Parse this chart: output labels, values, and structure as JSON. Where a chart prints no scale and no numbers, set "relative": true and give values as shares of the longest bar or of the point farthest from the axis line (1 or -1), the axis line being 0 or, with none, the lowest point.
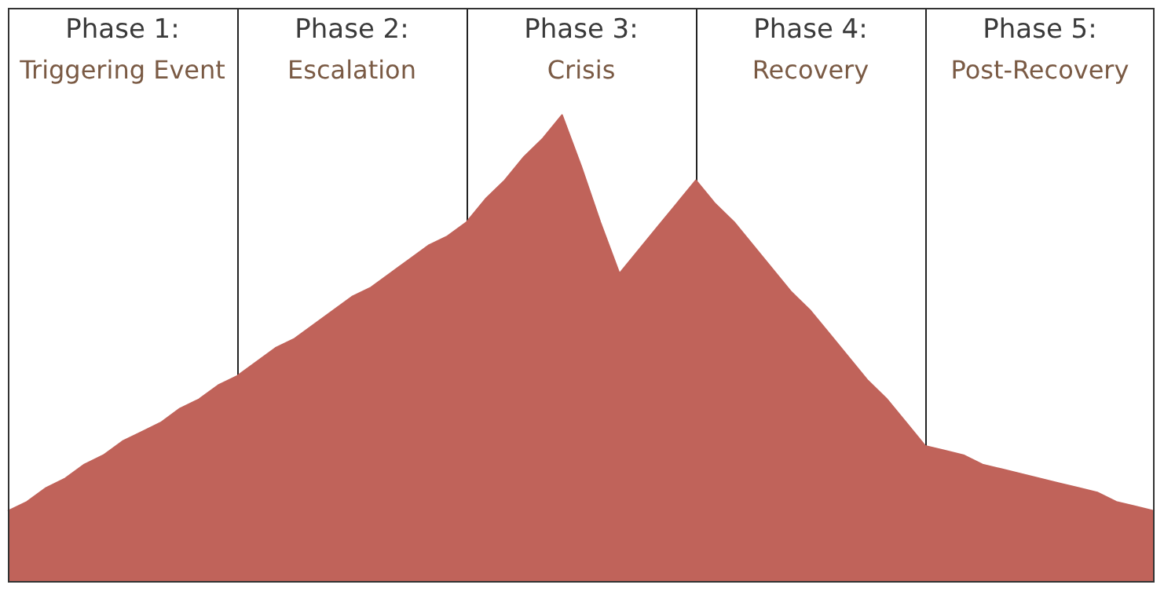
{
  "chart_data": {
    "type": "area",
    "relative": true,
    "tick_labels": false,
    "legend": false,
    "annotations": [
      "Phase 1:\nTriggering Event",
      "Phase 2:\nEscalation",
      "Phase 3:\nCrisis",
      "Phase 4:\nRecovery",
      "Phase 5:\nPost-Recovery"
    ],
    "categories": [
      null,
      null,
      null,
      null,
      null,
      null,
      null,
      null,
      null,
      null,
      null,
      null,
      null,
      null,
      null,
      null,
      null,
      null,
      null,
      null,
      null,
      null,
      null,
      null,
      null,
      null,
      null,
      null,
      null,
      null,
      null,
      null,
      null,
      null,
      null,
      null,
      null,
      null,
      null,
      null,
      null,
      null,
      null,
      null,
      null,
      null,
      null,
      null,
      null,
      null,
      null,
      null,
      null,
      null,
      null,
      null,
      null,
      null,
      null,
      null,
      null
    ],
    "series": [
      {
        "color": "#c0635a",
        "values": [
          0.15,
          0.17,
          0.2,
          0.22,
          0.25,
          0.27,
          0.3,
          0.32,
          0.34,
          0.37,
          0.39,
          0.42,
          0.44,
          0.47,
          0.5,
          0.52,
          0.55,
          0.58,
          0.61,
          0.63,
          0.66,
          0.69,
          0.72,
          0.74,
          0.77,
          0.82,
          0.86,
          0.91,
          0.95,
          1,
          0.89,
          0.77,
          0.66,
          0.71,
          0.76,
          0.81,
          0.86,
          0.81,
          0.77,
          0.72,
          0.67,
          0.62,
          0.58,
          0.53,
          0.48,
          0.43,
          0.39,
          0.34,
          0.29,
          0.28,
          0.27,
          0.25,
          0.24,
          0.23,
          0.22,
          0.21,
          0.2,
          0.19,
          0.17,
          0.16,
          0.15
        ]
      }
    ]
  }
}
